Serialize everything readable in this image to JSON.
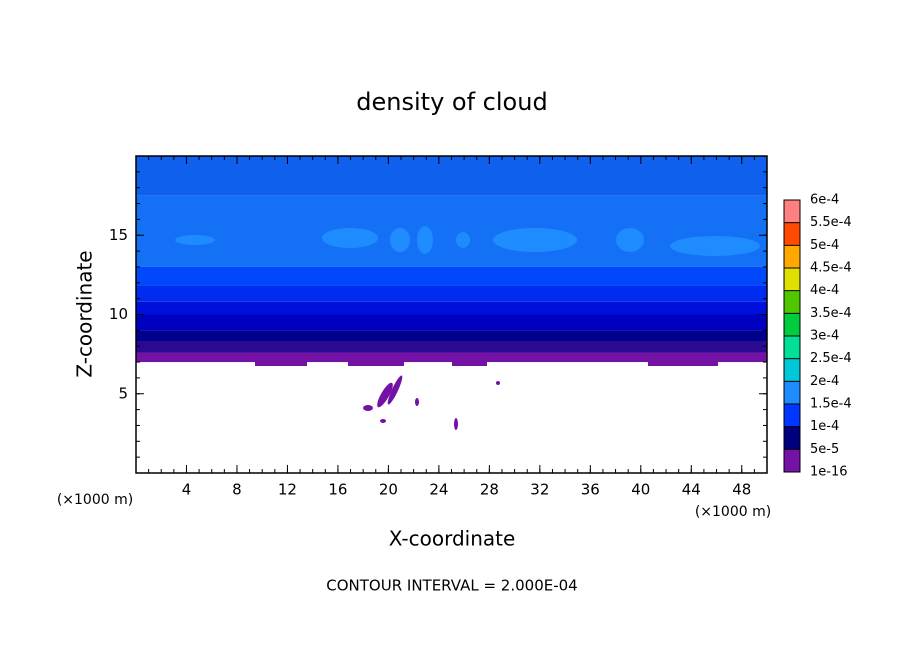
{
  "chart_data": {
    "type": "contour",
    "title": "density of cloud",
    "xlabel": "X-coordinate",
    "ylabel": "Z-coordinate",
    "axis_unit": "(×1000 m)",
    "footer": "CONTOUR INTERVAL = 2.000E-04",
    "xlim": [
      0,
      50
    ],
    "ylim": [
      0,
      20
    ],
    "xticks": [
      4,
      8,
      12,
      16,
      20,
      24,
      28,
      32,
      36,
      40,
      44,
      48
    ],
    "yticks": [
      5,
      10,
      15
    ],
    "bands": [
      {
        "z": [
          7,
          7.6
        ],
        "color": "#7412a6"
      },
      {
        "z": [
          7.6,
          8.3
        ],
        "color": "#2a0a90"
      },
      {
        "z": [
          8.3,
          9
        ],
        "color": "#00008a"
      },
      {
        "z": [
          9,
          10
        ],
        "color": "#0000c0"
      },
      {
        "z": [
          10,
          10.8
        ],
        "color": "#0010dc"
      },
      {
        "z": [
          10.8,
          11.8
        ],
        "color": "#002cf0"
      },
      {
        "z": [
          11.8,
          13
        ],
        "color": "#0048fa"
      },
      {
        "z": [
          13,
          17.5
        ],
        "color": "#1470f5"
      },
      {
        "z": [
          17.5,
          20
        ],
        "color": "#1060ee"
      }
    ],
    "colorbar": {
      "ticks": [
        {
          "value": 1e-16,
          "label": "1e-16"
        },
        {
          "value": 5e-05,
          "label": "5e-5"
        },
        {
          "value": 0.0001,
          "label": "1e-4"
        },
        {
          "value": 0.00015,
          "label": "1.5e-4"
        },
        {
          "value": 0.0002,
          "label": "2e-4"
        },
        {
          "value": 0.00025,
          "label": "2.5e-4"
        },
        {
          "value": 0.0003,
          "label": "3e-4"
        },
        {
          "value": 0.00035,
          "label": "3.5e-4"
        },
        {
          "value": 0.0004,
          "label": "4e-4"
        },
        {
          "value": 0.00045,
          "label": "4.5e-4"
        },
        {
          "value": 0.0005,
          "label": "5e-4"
        },
        {
          "value": 0.00055,
          "label": "5.5e-4"
        },
        {
          "value": 0.0006,
          "label": "6e-4"
        }
      ],
      "colors": [
        "#7412a6",
        "#00007f",
        "#0036ff",
        "#1e8cff",
        "#00c8d8",
        "#00e098",
        "#00cc40",
        "#50c800",
        "#e0e000",
        "#ffa800",
        "#ff4a00",
        "#ff8080"
      ]
    }
  }
}
